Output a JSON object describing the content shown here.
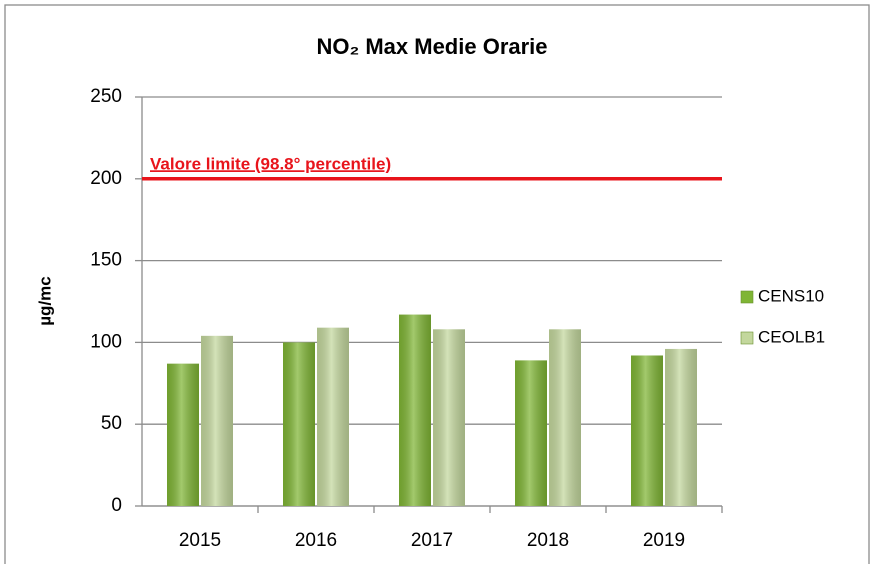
{
  "chart_data": {
    "type": "bar",
    "title": "NO₂ Max Medie Orarie",
    "y_label": "µg/mc",
    "categories": [
      "2015",
      "2016",
      "2017",
      "2018",
      "2019"
    ],
    "series": [
      {
        "name": "CENS10",
        "color": "#7fb534",
        "values": [
          87,
          100,
          117,
          89,
          92
        ]
      },
      {
        "name": "CEOLB1",
        "color": "#c3d79d",
        "values": [
          104,
          109,
          108,
          108,
          96
        ]
      }
    ],
    "reference_line": {
      "value": 200,
      "label": "Valore limite (98.8° percentile)",
      "color": "#e8141b"
    },
    "ylim": [
      0,
      250
    ],
    "yticks": [
      0,
      50,
      100,
      150,
      200,
      250
    ],
    "grid": true,
    "legend": "right"
  }
}
